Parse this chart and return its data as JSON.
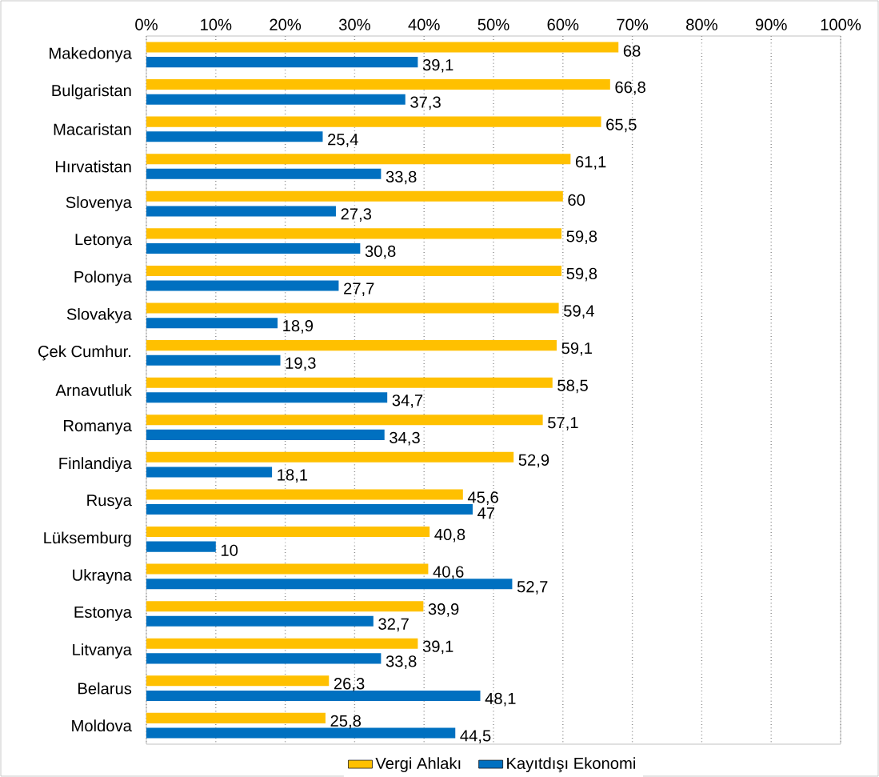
{
  "chart_data": {
    "type": "bar",
    "orientation": "horizontal",
    "categories": [
      "Makedonya",
      "Bulgaristan",
      "Macaristan",
      "Hırvatistan",
      "Slovenya",
      "Letonya",
      "Polonya",
      "Slovakya",
      "Çek Cumhur.",
      "Arnavutluk",
      "Romanya",
      "Finlandiya",
      "Rusya",
      "Lüksemburg",
      "Ukrayna",
      "Estonya",
      "Litvanya",
      "Belarus",
      "Moldova"
    ],
    "series": [
      {
        "name": "Vergi Ahlakı",
        "color": "#ffc000",
        "values": [
          68,
          66.8,
          65.5,
          61.1,
          60,
          59.8,
          59.8,
          59.4,
          59.1,
          58.5,
          57.1,
          52.9,
          45.6,
          40.8,
          40.6,
          39.9,
          39.1,
          26.3,
          25.8
        ],
        "value_labels": [
          "68",
          "66,8",
          "65,5",
          "61,1",
          "60",
          "59,8",
          "59,8",
          "59,4",
          "59,1",
          "58,5",
          "57,1",
          "52,9",
          "45,6",
          "40,8",
          "40,6",
          "39,9",
          "39,1",
          "26,3",
          "25,8"
        ]
      },
      {
        "name": "Kayıtdışı Ekonomi",
        "color": "#0070c0",
        "values": [
          39.1,
          37.3,
          25.4,
          33.8,
          27.3,
          30.8,
          27.7,
          18.9,
          19.3,
          34.7,
          34.3,
          18.1,
          47,
          10,
          52.7,
          32.7,
          33.8,
          48.1,
          44.5
        ],
        "value_labels": [
          "39,1",
          "37,3",
          "25,4",
          "33,8",
          "27,3",
          "30,8",
          "27,7",
          "18,9",
          "19,3",
          "34,7",
          "34,3",
          "18,1",
          "47",
          "10",
          "52,7",
          "32,7",
          "33,8",
          "48,1",
          "44,5"
        ]
      }
    ],
    "xlim": [
      0,
      100
    ],
    "xticks": [
      {
        "value": 0,
        "label": "0%"
      },
      {
        "value": 10,
        "label": "10%"
      },
      {
        "value": 20,
        "label": "20%"
      },
      {
        "value": 30,
        "label": "30%"
      },
      {
        "value": 40,
        "label": "40%"
      },
      {
        "value": 50,
        "label": "50%"
      },
      {
        "value": 60,
        "label": "60%"
      },
      {
        "value": 70,
        "label": "70%"
      },
      {
        "value": 80,
        "label": "80%"
      },
      {
        "value": 90,
        "label": "90%"
      },
      {
        "value": 100,
        "label": "100%"
      }
    ],
    "grid": "x",
    "legend": "bottom"
  }
}
